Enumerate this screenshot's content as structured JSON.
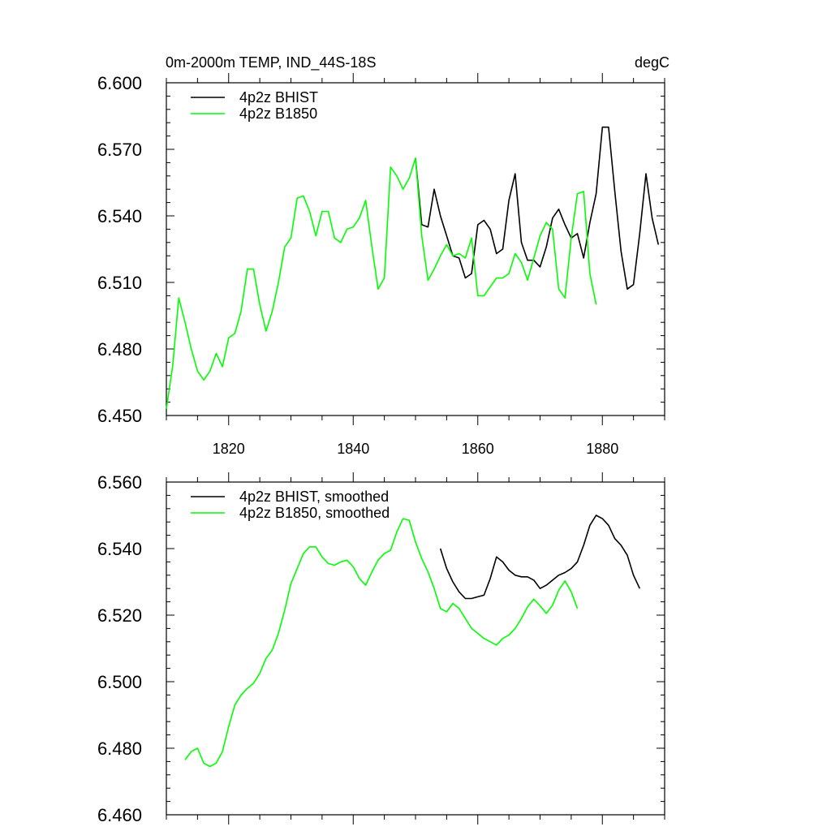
{
  "colors": {
    "bhist": "#000000",
    "b1850": "#00ff00"
  },
  "chart_data": [
    {
      "type": "line",
      "title_left": "0m-2000m TEMP, IND_44S-18S",
      "title_right": "degC",
      "xlim": [
        1810,
        1890
      ],
      "ylim": [
        6.45,
        6.6
      ],
      "yticks": [
        "6.450",
        "6.480",
        "6.510",
        "6.540",
        "6.570",
        "6.600"
      ],
      "xticks": [
        "1820",
        "1840",
        "1860",
        "1880"
      ],
      "legend_position": "top-left",
      "series": [
        {
          "name": "4p2z BHIST",
          "color": "#000000",
          "x": [
            1850,
            1851,
            1852,
            1853,
            1854,
            1855,
            1856,
            1857,
            1858,
            1859,
            1860,
            1861,
            1862,
            1863,
            1864,
            1865,
            1866,
            1867,
            1868,
            1869,
            1870,
            1871,
            1872,
            1873,
            1874,
            1875,
            1876,
            1877,
            1878,
            1879,
            1880,
            1881,
            1882,
            1883,
            1884,
            1885,
            1886,
            1887,
            1888,
            1889
          ],
          "y": [
            6.566,
            6.536,
            6.535,
            6.552,
            6.54,
            6.531,
            6.522,
            6.521,
            6.512,
            6.514,
            6.536,
            6.538,
            6.534,
            6.523,
            6.525,
            6.547,
            6.559,
            6.528,
            6.52,
            6.52,
            6.517,
            6.526,
            6.539,
            6.543,
            6.536,
            6.53,
            6.532,
            6.521,
            6.537,
            6.55,
            6.58,
            6.58,
            6.551,
            6.524,
            6.507,
            6.509,
            6.532,
            6.559,
            6.539,
            6.527
          ]
        },
        {
          "name": "4p2z B1850",
          "color": "#00ff00",
          "x": [
            1810,
            1811,
            1812,
            1813,
            1814,
            1815,
            1816,
            1817,
            1818,
            1819,
            1820,
            1821,
            1822,
            1823,
            1824,
            1825,
            1826,
            1827,
            1828,
            1829,
            1830,
            1831,
            1832,
            1833,
            1834,
            1835,
            1836,
            1837,
            1838,
            1839,
            1840,
            1841,
            1842,
            1843,
            1844,
            1845,
            1846,
            1847,
            1848,
            1849,
            1850,
            1851,
            1852,
            1853,
            1854,
            1855,
            1856,
            1857,
            1858,
            1859,
            1860,
            1861,
            1862,
            1863,
            1864,
            1865,
            1866,
            1867,
            1868,
            1869,
            1870,
            1871,
            1872,
            1873,
            1874,
            1875,
            1876,
            1877,
            1878,
            1879
          ],
          "y": [
            6.453,
            6.472,
            6.503,
            6.492,
            6.48,
            6.47,
            6.466,
            6.47,
            6.478,
            6.472,
            6.485,
            6.487,
            6.497,
            6.516,
            6.516,
            6.5,
            6.488,
            6.497,
            6.51,
            6.526,
            6.53,
            6.548,
            6.549,
            6.542,
            6.531,
            6.542,
            6.542,
            6.53,
            6.528,
            6.534,
            6.535,
            6.539,
            6.547,
            6.526,
            6.507,
            6.512,
            6.562,
            6.558,
            6.552,
            6.557,
            6.566,
            6.531,
            6.511,
            6.516,
            6.522,
            6.527,
            6.522,
            6.523,
            6.521,
            6.53,
            6.504,
            6.504,
            6.508,
            6.512,
            6.512,
            6.514,
            6.523,
            6.519,
            6.511,
            6.521,
            6.531,
            6.537,
            6.534,
            6.507,
            6.503,
            6.53,
            6.55,
            6.551,
            6.514,
            6.5
          ]
        }
      ]
    },
    {
      "type": "line",
      "xlim": [
        1810,
        1890
      ],
      "ylim": [
        6.46,
        6.56
      ],
      "yticks": [
        "6.460",
        "6.480",
        "6.500",
        "6.520",
        "6.540",
        "6.560"
      ],
      "legend_position": "top-left",
      "series": [
        {
          "name": "4p2z BHIST, smoothed",
          "color": "#000000",
          "x": [
            1854,
            1855,
            1856,
            1857,
            1858,
            1859,
            1860,
            1861,
            1862,
            1863,
            1864,
            1865,
            1866,
            1867,
            1868,
            1869,
            1870,
            1871,
            1872,
            1873,
            1874,
            1875,
            1876,
            1877,
            1878,
            1879,
            1880,
            1881,
            1882,
            1883,
            1884,
            1885,
            1886
          ],
          "y": [
            6.54,
            6.534,
            6.53,
            6.527,
            6.525,
            6.525,
            6.5255,
            6.526,
            6.531,
            6.5375,
            6.536,
            6.5335,
            6.532,
            6.5315,
            6.5315,
            6.5305,
            6.528,
            6.529,
            6.5305,
            6.532,
            6.5328,
            6.534,
            6.536,
            6.541,
            6.547,
            6.55,
            6.549,
            6.547,
            6.543,
            6.541,
            6.538,
            6.532,
            6.528
          ]
        },
        {
          "name": "4p2z B1850, smoothed",
          "color": "#00ff00",
          "x": [
            1813,
            1814,
            1815,
            1816,
            1817,
            1818,
            1819,
            1820,
            1821,
            1822,
            1823,
            1824,
            1825,
            1826,
            1827,
            1828,
            1829,
            1830,
            1831,
            1832,
            1833,
            1834,
            1835,
            1836,
            1837,
            1838,
            1839,
            1840,
            1841,
            1842,
            1843,
            1844,
            1845,
            1846,
            1847,
            1848,
            1849,
            1850,
            1851,
            1852,
            1853,
            1854,
            1855,
            1856,
            1857,
            1858,
            1859,
            1860,
            1861,
            1862,
            1863,
            1864,
            1865,
            1866,
            1867,
            1868,
            1869,
            1870,
            1871,
            1872,
            1873,
            1874,
            1875,
            1876
          ],
          "y": [
            6.4765,
            6.479,
            6.48,
            6.4755,
            6.4745,
            6.4755,
            6.479,
            6.4865,
            6.493,
            6.496,
            6.498,
            6.4995,
            6.5025,
            6.507,
            6.5095,
            6.5145,
            6.5215,
            6.5295,
            6.534,
            6.5385,
            6.5405,
            6.5405,
            6.5375,
            6.5355,
            6.535,
            6.536,
            6.5365,
            6.5345,
            6.531,
            6.529,
            6.533,
            6.5365,
            6.5385,
            6.5395,
            6.545,
            6.549,
            6.5485,
            6.542,
            6.537,
            6.533,
            6.528,
            6.522,
            6.521,
            6.5235,
            6.522,
            6.519,
            6.516,
            6.5145,
            6.513,
            6.512,
            6.511,
            6.513,
            6.514,
            6.516,
            6.519,
            6.5225,
            6.5248,
            6.5228,
            6.5205,
            6.523,
            6.5275,
            6.5303,
            6.527,
            6.522
          ]
        }
      ]
    }
  ]
}
